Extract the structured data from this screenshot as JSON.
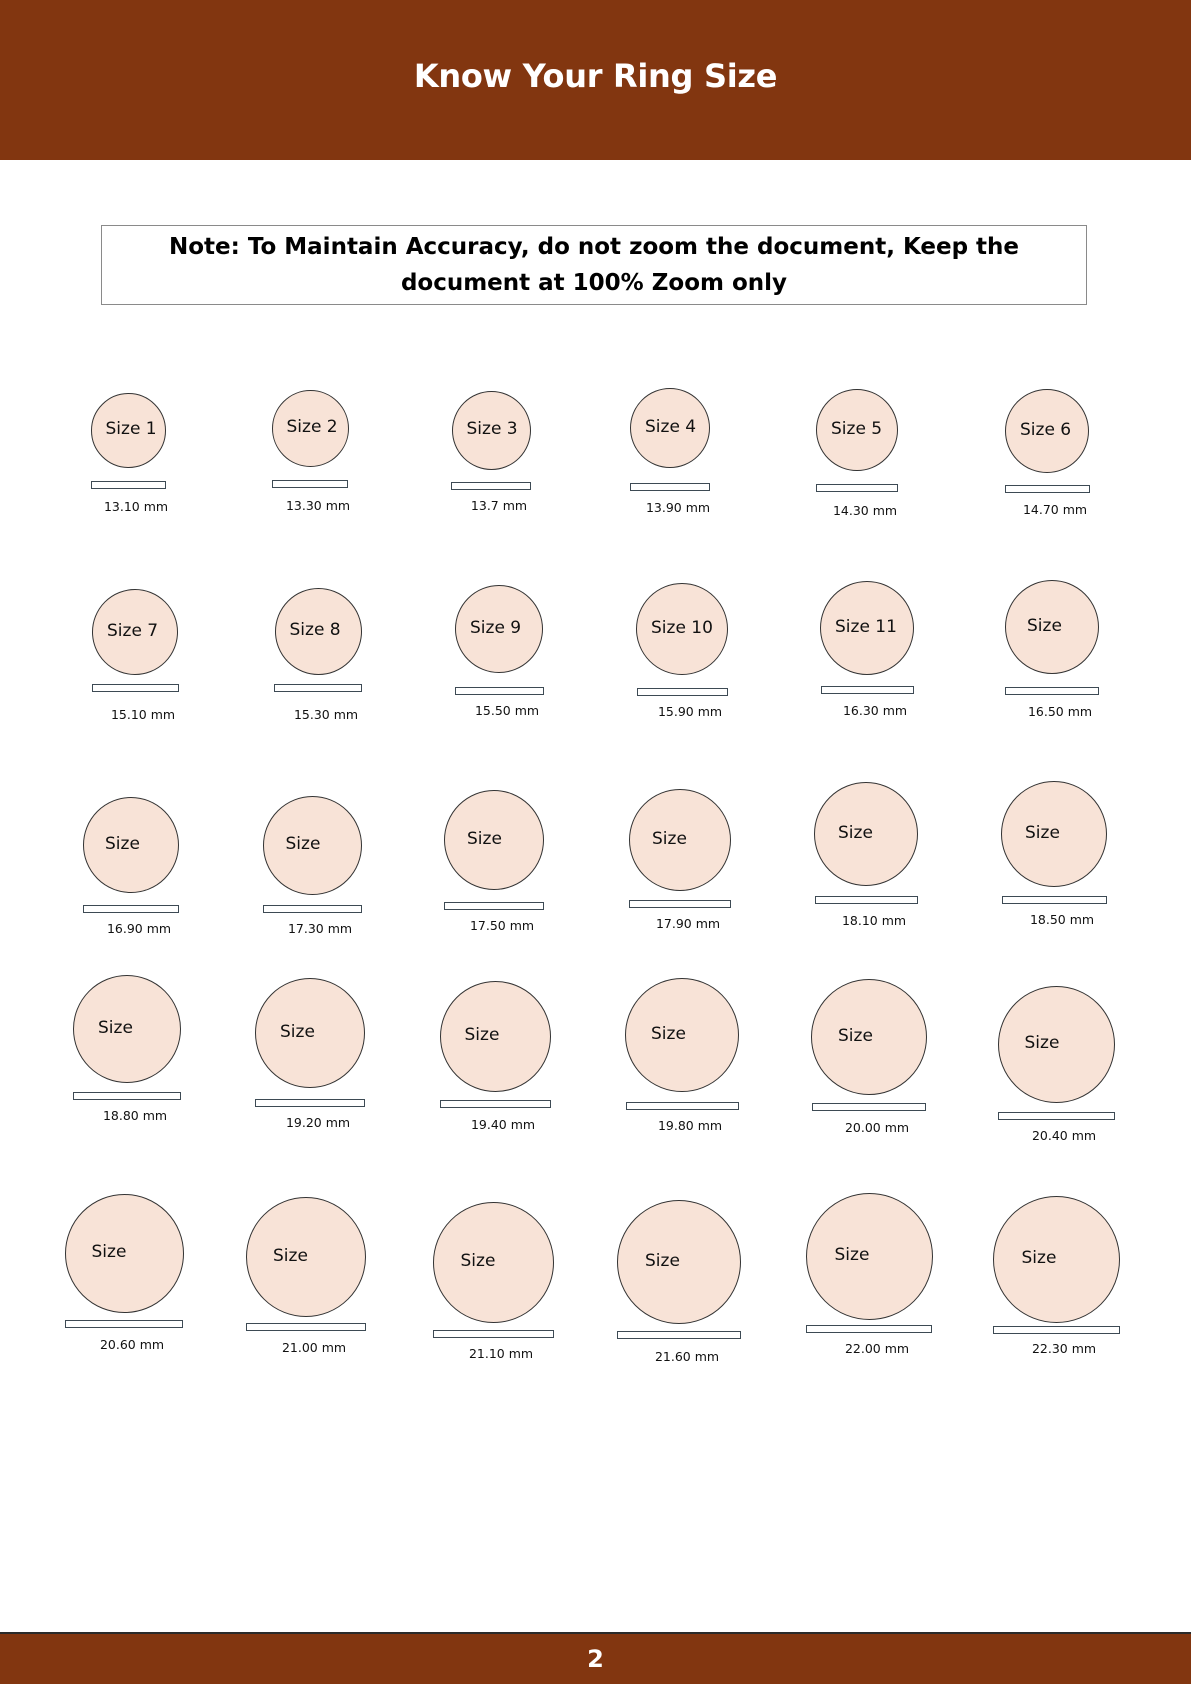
{
  "header": {
    "title": "Know Your Ring Size"
  },
  "note": {
    "text": "Note: To Maintain Accuracy, do not zoom the document, Keep the document at 100% Zoom only"
  },
  "rings": [
    {
      "label": "Size 1",
      "mm": "13.10 mm"
    },
    {
      "label": "Size 2",
      "mm": "13.30 mm"
    },
    {
      "label": "Size 3",
      "mm": "13.7 mm"
    },
    {
      "label": "Size 4",
      "mm": "13.90 mm"
    },
    {
      "label": "Size 5",
      "mm": "14.30 mm"
    },
    {
      "label": "Size 6",
      "mm": "14.70 mm"
    },
    {
      "label": "Size 7",
      "mm": "15.10 mm"
    },
    {
      "label": "Size 8",
      "mm": "15.30 mm"
    },
    {
      "label": "Size 9",
      "mm": "15.50 mm"
    },
    {
      "label": "Size 10",
      "mm": "15.90 mm"
    },
    {
      "label": "Size 11",
      "mm": "16.30 mm"
    },
    {
      "label": "Size",
      "mm": "16.50 mm"
    },
    {
      "label": "Size",
      "mm": "16.90 mm"
    },
    {
      "label": "Size",
      "mm": "17.30 mm"
    },
    {
      "label": "Size",
      "mm": "17.50 mm"
    },
    {
      "label": "Size",
      "mm": "17.90 mm"
    },
    {
      "label": "Size",
      "mm": "18.10 mm"
    },
    {
      "label": "Size",
      "mm": "18.50 mm"
    },
    {
      "label": "Size",
      "mm": "18.80 mm"
    },
    {
      "label": "Size",
      "mm": "19.20 mm"
    },
    {
      "label": "Size",
      "mm": "19.40 mm"
    },
    {
      "label": "Size",
      "mm": "19.80 mm"
    },
    {
      "label": "Size",
      "mm": "20.00 mm"
    },
    {
      "label": "Size",
      "mm": "20.40 mm"
    },
    {
      "label": "Size",
      "mm": "20.60 mm"
    },
    {
      "label": "Size",
      "mm": "21.00 mm"
    },
    {
      "label": "Size",
      "mm": "21.10 mm"
    },
    {
      "label": "Size",
      "mm": "21.60 mm"
    },
    {
      "label": "Size",
      "mm": "22.00 mm"
    },
    {
      "label": "Size",
      "mm": "22.30 mm"
    }
  ],
  "footer": {
    "page_number": "2"
  },
  "colors": {
    "brand": "#823610",
    "ring_fill": "#f8e3d7"
  }
}
